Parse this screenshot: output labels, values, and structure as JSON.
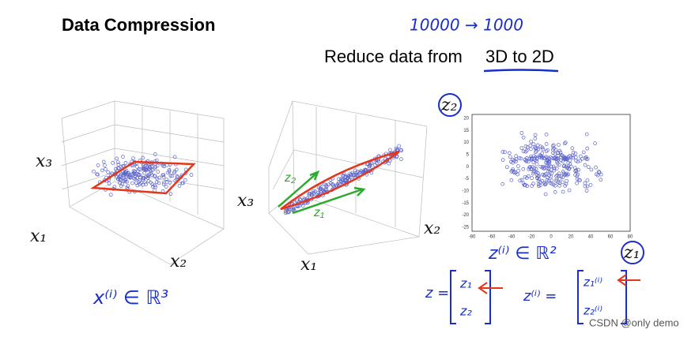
{
  "header": {
    "title": "Data Compression",
    "annotation": "10000 → 1000",
    "subtitle": "Reduce data from",
    "subtitle_highlight": "3D to 2D"
  },
  "plots": [
    {
      "labels": [
        "x₃",
        "x₁",
        "x₂"
      ],
      "note": "x⁽ⁱ⁾ ∈ ℝ³"
    },
    {
      "labels": [
        "x₃",
        "x₁",
        "x₂"
      ],
      "arrows": [
        "z₂",
        "z₁"
      ]
    },
    {
      "labels": [
        "z₂",
        "z₁"
      ],
      "note": "z⁽ⁱ⁾ ∈ ℝ²",
      "xticks": [
        "-80",
        "-60",
        "-40",
        "-20",
        "0",
        "20",
        "40",
        "60",
        "80"
      ],
      "yticks": [
        "20",
        "15",
        "10",
        "5",
        "0",
        "-5",
        "-10",
        "-15",
        "-20",
        "-25"
      ]
    }
  ],
  "formulas": [
    {
      "lhs": "z =",
      "entries": [
        "z₁",
        "z₂"
      ]
    },
    {
      "lhs": "z⁽ⁱ⁾ =",
      "entries": [
        "z₁⁽ⁱ⁾",
        "z₂⁽ⁱ⁾"
      ]
    }
  ],
  "watermark": "CSDN @only demo"
}
